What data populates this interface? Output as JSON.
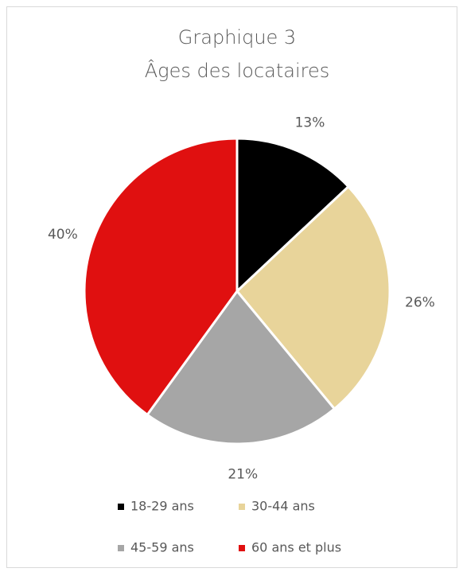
{
  "chart_data": {
    "type": "pie",
    "title": "Graphique 3",
    "subtitle": "Âges des locataires",
    "categories": [
      "18-29 ans",
      "30-44 ans",
      "45-59 ans",
      "60 ans et plus"
    ],
    "values": [
      13,
      26,
      21,
      40
    ],
    "value_labels": [
      "13%",
      "26%",
      "21%",
      "40%"
    ],
    "colors": [
      "#000000",
      "#e8d49a",
      "#a6a6a6",
      "#e01010"
    ],
    "legend": "bottom"
  }
}
